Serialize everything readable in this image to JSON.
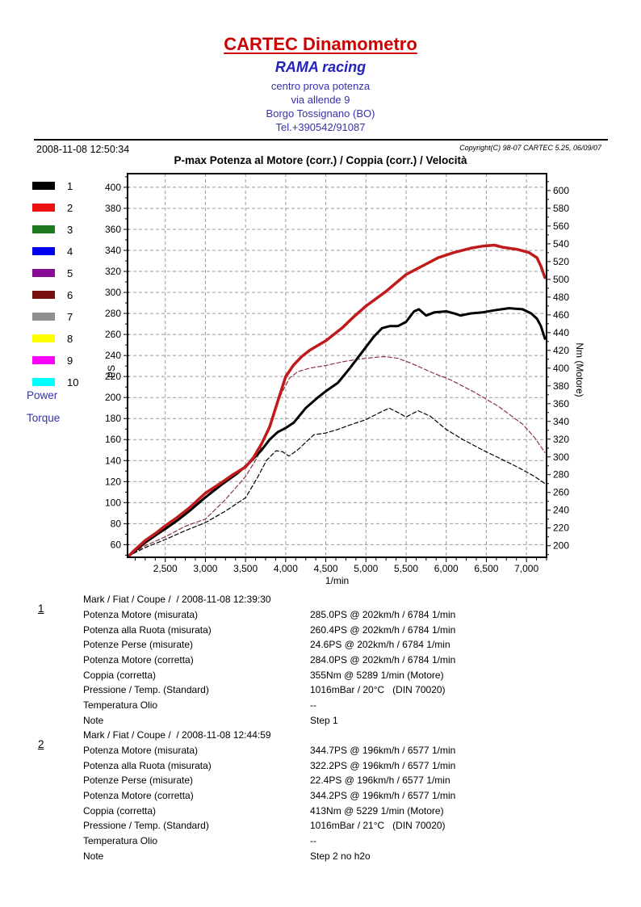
{
  "header": {
    "title": "CARTEC Dinamometro",
    "subtitle": "RAMA racing",
    "address_lines": [
      "centro prova potenza",
      "via allende 9",
      "Borgo Tossignano (BO)",
      "Tel.+390542/91087"
    ]
  },
  "meta": {
    "timestamp": "2008-11-08 12:50:34",
    "copyright": "Copyright(C) 98-07 CARTEC 5.25, 06/09/07"
  },
  "legend": {
    "power_label": "Power",
    "torque_label": "Torque",
    "items": [
      {
        "num": "1",
        "color": "#000000"
      },
      {
        "num": "2",
        "color": "#ee1111"
      },
      {
        "num": "3",
        "color": "#1f7a1f"
      },
      {
        "num": "4",
        "color": "#0000ee"
      },
      {
        "num": "5",
        "color": "#8a0c96"
      },
      {
        "num": "6",
        "color": "#7a1111"
      },
      {
        "num": "7",
        "color": "#909090"
      },
      {
        "num": "8",
        "color": "#ffff00"
      },
      {
        "num": "9",
        "color": "#ff00ff"
      },
      {
        "num": "10",
        "color": "#00ffff"
      }
    ]
  },
  "chart_data": {
    "type": "line",
    "title": "P-max Potenza al Motore (corr.) / Coppia (corr.) / Velocità",
    "xlabel": "1/min",
    "ylabel_left": "PS",
    "ylabel_right": "Nm (Motore)",
    "grid": true,
    "legend_position": "left",
    "x_range": [
      2030,
      7250
    ],
    "y_left_range": [
      48,
      413
    ],
    "y_right_range": [
      187,
      619
    ],
    "x_ticks": [
      2500,
      3000,
      3500,
      4000,
      4500,
      5000,
      5500,
      6000,
      6500,
      7000
    ],
    "x_tick_labels": [
      "2,500",
      "3,000",
      "3,500",
      "4,000",
      "4,500",
      "5,000",
      "5,500",
      "6,000",
      "6,500",
      "7,000"
    ],
    "y_left_ticks": [
      60,
      80,
      100,
      120,
      140,
      160,
      180,
      200,
      220,
      240,
      260,
      280,
      300,
      320,
      340,
      360,
      380,
      400
    ],
    "y_right_ticks": [
      200,
      220,
      240,
      260,
      280,
      300,
      320,
      340,
      360,
      380,
      400,
      420,
      440,
      460,
      480,
      500,
      520,
      540,
      560,
      580,
      600
    ],
    "grid_color": "#999999",
    "series": [
      {
        "name": "torque-run-1",
        "axis": "right",
        "unit": "Nm",
        "color": "#000000",
        "style": "dashed",
        "width": 1.2,
        "points": [
          [
            2030,
            188
          ],
          [
            2250,
            198
          ],
          [
            2500,
            207
          ],
          [
            2750,
            217
          ],
          [
            3000,
            226
          ],
          [
            3250,
            239
          ],
          [
            3500,
            254
          ],
          [
            3650,
            277
          ],
          [
            3760,
            296
          ],
          [
            3880,
            307
          ],
          [
            3960,
            306
          ],
          [
            4040,
            301
          ],
          [
            4150,
            308
          ],
          [
            4350,
            325
          ],
          [
            4500,
            327
          ],
          [
            4650,
            331
          ],
          [
            4800,
            336
          ],
          [
            5000,
            342
          ],
          [
            5150,
            349
          ],
          [
            5290,
            355
          ],
          [
            5400,
            350
          ],
          [
            5500,
            345
          ],
          [
            5650,
            352
          ],
          [
            5800,
            346
          ],
          [
            6000,
            331
          ],
          [
            6200,
            320
          ],
          [
            6450,
            308
          ],
          [
            6700,
            297
          ],
          [
            6900,
            288
          ],
          [
            7100,
            278
          ],
          [
            7230,
            270
          ]
        ]
      },
      {
        "name": "torque-run-2",
        "axis": "right",
        "unit": "Nm",
        "color": "#8e3541",
        "style": "dashed",
        "width": 1.2,
        "points": [
          [
            2030,
            188
          ],
          [
            2250,
            200
          ],
          [
            2500,
            210
          ],
          [
            2750,
            222
          ],
          [
            3000,
            230
          ],
          [
            3250,
            252
          ],
          [
            3500,
            278
          ],
          [
            3650,
            300
          ],
          [
            3750,
            324
          ],
          [
            3850,
            350
          ],
          [
            3950,
            372
          ],
          [
            4050,
            389
          ],
          [
            4150,
            396
          ],
          [
            4300,
            400
          ],
          [
            4500,
            403
          ],
          [
            4700,
            407
          ],
          [
            4900,
            410
          ],
          [
            5100,
            412
          ],
          [
            5229,
            413
          ],
          [
            5400,
            411
          ],
          [
            5550,
            406
          ],
          [
            5700,
            400
          ],
          [
            5850,
            394
          ],
          [
            6050,
            387
          ],
          [
            6200,
            380
          ],
          [
            6350,
            373
          ],
          [
            6500,
            365
          ],
          [
            6650,
            357
          ],
          [
            6800,
            347
          ],
          [
            6950,
            337
          ],
          [
            7100,
            322
          ],
          [
            7230,
            305
          ]
        ]
      },
      {
        "name": "power-run-1",
        "axis": "left",
        "unit": "PS",
        "color": "#000000",
        "style": "solid",
        "width": 3,
        "points": [
          [
            2030,
            48
          ],
          [
            2120,
            54
          ],
          [
            2250,
            62
          ],
          [
            2400,
            70
          ],
          [
            2500,
            75
          ],
          [
            2650,
            83
          ],
          [
            2800,
            92
          ],
          [
            3000,
            105
          ],
          [
            3200,
            117
          ],
          [
            3400,
            128
          ],
          [
            3550,
            138
          ],
          [
            3700,
            150
          ],
          [
            3800,
            160
          ],
          [
            3900,
            167
          ],
          [
            4000,
            171
          ],
          [
            4100,
            176
          ],
          [
            4250,
            190
          ],
          [
            4400,
            200
          ],
          [
            4500,
            206
          ],
          [
            4650,
            214
          ],
          [
            4800,
            228
          ],
          [
            5000,
            248
          ],
          [
            5100,
            258
          ],
          [
            5200,
            266
          ],
          [
            5300,
            268
          ],
          [
            5400,
            268
          ],
          [
            5500,
            272
          ],
          [
            5600,
            282
          ],
          [
            5660,
            284
          ],
          [
            5750,
            278
          ],
          [
            5850,
            281
          ],
          [
            6000,
            282
          ],
          [
            6100,
            280
          ],
          [
            6180,
            278
          ],
          [
            6300,
            280
          ],
          [
            6450,
            281
          ],
          [
            6600,
            283
          ],
          [
            6780,
            285
          ],
          [
            6950,
            284
          ],
          [
            7060,
            280
          ],
          [
            7130,
            275
          ],
          [
            7180,
            268
          ],
          [
            7230,
            256
          ]
        ]
      },
      {
        "name": "power-run-2",
        "axis": "left",
        "unit": "PS",
        "color": "#c01a1a",
        "style": "solid",
        "width": 3.5,
        "points": [
          [
            2030,
            48
          ],
          [
            2120,
            55
          ],
          [
            2250,
            64
          ],
          [
            2400,
            72
          ],
          [
            2500,
            78
          ],
          [
            2650,
            86
          ],
          [
            2800,
            95
          ],
          [
            3000,
            109
          ],
          [
            3200,
            119
          ],
          [
            3350,
            127
          ],
          [
            3500,
            134
          ],
          [
            3600,
            143
          ],
          [
            3700,
            156
          ],
          [
            3800,
            172
          ],
          [
            3900,
            196
          ],
          [
            4000,
            220
          ],
          [
            4100,
            231
          ],
          [
            4200,
            239
          ],
          [
            4300,
            245
          ],
          [
            4500,
            254
          ],
          [
            4700,
            266
          ],
          [
            4850,
            277
          ],
          [
            5000,
            287
          ],
          [
            5250,
            301
          ],
          [
            5500,
            317
          ],
          [
            5700,
            325
          ],
          [
            5900,
            333
          ],
          [
            6100,
            338
          ],
          [
            6300,
            342
          ],
          [
            6450,
            344
          ],
          [
            6600,
            345
          ],
          [
            6700,
            343
          ],
          [
            6880,
            341
          ],
          [
            7030,
            338
          ],
          [
            7130,
            333
          ],
          [
            7180,
            325
          ],
          [
            7230,
            314
          ]
        ]
      }
    ]
  },
  "runs": [
    {
      "num": "1",
      "header": "Mark / Fiat / Coupe /  / 2008-11-08 12:39:30",
      "rows": [
        {
          "label": "Potenza Motore (misurata)",
          "value": "285.0PS @ 202km/h / 6784 1/min"
        },
        {
          "label": "Potenza alla Ruota (misurata)",
          "value": "260.4PS @ 202km/h / 6784 1/min"
        },
        {
          "label": "Potenze Perse (misurate)",
          "value": "24.6PS @ 202km/h / 6784 1/min"
        },
        {
          "label": "Potenza Motore (corretta)",
          "value": "284.0PS @ 202km/h / 6784 1/min"
        },
        {
          "label": "Coppia (corretta)",
          "value": "355Nm @ 5289 1/min (Motore)"
        },
        {
          "label": "Pressione / Temp. (Standard)",
          "value": "1016mBar / 20°C   (DIN 70020)"
        },
        {
          "label": "Temperatura Olio",
          "value": "--"
        },
        {
          "label": "Note",
          "value": "Step 1"
        }
      ]
    },
    {
      "num": "2",
      "header": "Mark / Fiat / Coupe /  / 2008-11-08 12:44:59",
      "rows": [
        {
          "label": "Potenza Motore (misurata)",
          "value": "344.7PS @ 196km/h / 6577 1/min"
        },
        {
          "label": "Potenza alla Ruota (misurata)",
          "value": "322.2PS @ 196km/h / 6577 1/min"
        },
        {
          "label": "Potenze Perse (misurate)",
          "value": "22.4PS @ 196km/h / 6577 1/min"
        },
        {
          "label": "Potenza Motore (corretta)",
          "value": "344.2PS @ 196km/h / 6577 1/min"
        },
        {
          "label": "Coppia (corretta)",
          "value": "413Nm @ 5229 1/min (Motore)"
        },
        {
          "label": "Pressione / Temp. (Standard)",
          "value": "1016mBar / 21°C   (DIN 70020)"
        },
        {
          "label": "Temperatura Olio",
          "value": "--"
        },
        {
          "label": "Note",
          "value": "Step 2 no h2o"
        }
      ]
    }
  ]
}
